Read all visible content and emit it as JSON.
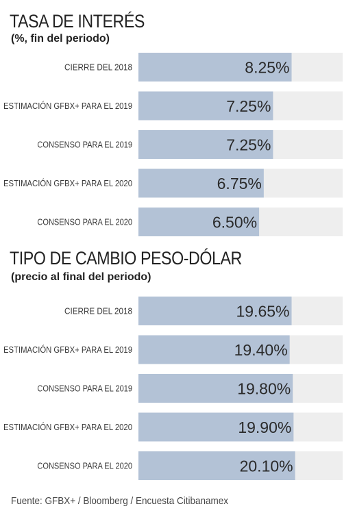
{
  "chart_data": [
    {
      "type": "bar",
      "title": "TASA DE INTERÉS",
      "subtitle": "(%, fin del periodo)",
      "categories": [
        "CIERRE DEL 2018",
        "ESTIMACIÓN GFBX+ PARA EL 2019",
        "CONSENSO PARA EL 2019",
        "ESTIMACIÓN GFBX+ PARA EL 2020",
        "CONSENSO PARA EL 2020"
      ],
      "values": [
        8.25,
        7.25,
        7.25,
        6.75,
        6.5
      ],
      "labels": [
        "8.25%",
        "7.25%",
        "7.25%",
        "6.75%",
        "6.50%"
      ],
      "orientation": "horizontal",
      "xlim": [
        0,
        11
      ],
      "colors": {
        "bar": "#b3c2d6",
        "track": "#eeeeee"
      }
    },
    {
      "type": "bar",
      "title": "TIPO DE CAMBIO PESO-DÓLAR",
      "subtitle": "(precio al final del periodo)",
      "categories": [
        "CIERRE DEL 2018",
        "ESTIMACIÓN GFBX+ PARA EL 2019",
        "CONSENSO PARA EL 2019",
        "ESTIMACIÓN GFBX+ PARA EL 2020",
        "CONSENSO PARA EL 2020"
      ],
      "values": [
        19.65,
        19.4,
        19.8,
        19.9,
        20.1
      ],
      "labels": [
        "19.65%",
        "19.40%",
        "19.80%",
        "19.90%",
        "20.10%"
      ],
      "orientation": "horizontal",
      "xlim": [
        0,
        26.2
      ],
      "colors": {
        "bar": "#b3c2d6",
        "track": "#eeeeee"
      }
    }
  ],
  "footer": "Fuente: GFBX+ / Bloomberg / Encuesta Citibanamex"
}
